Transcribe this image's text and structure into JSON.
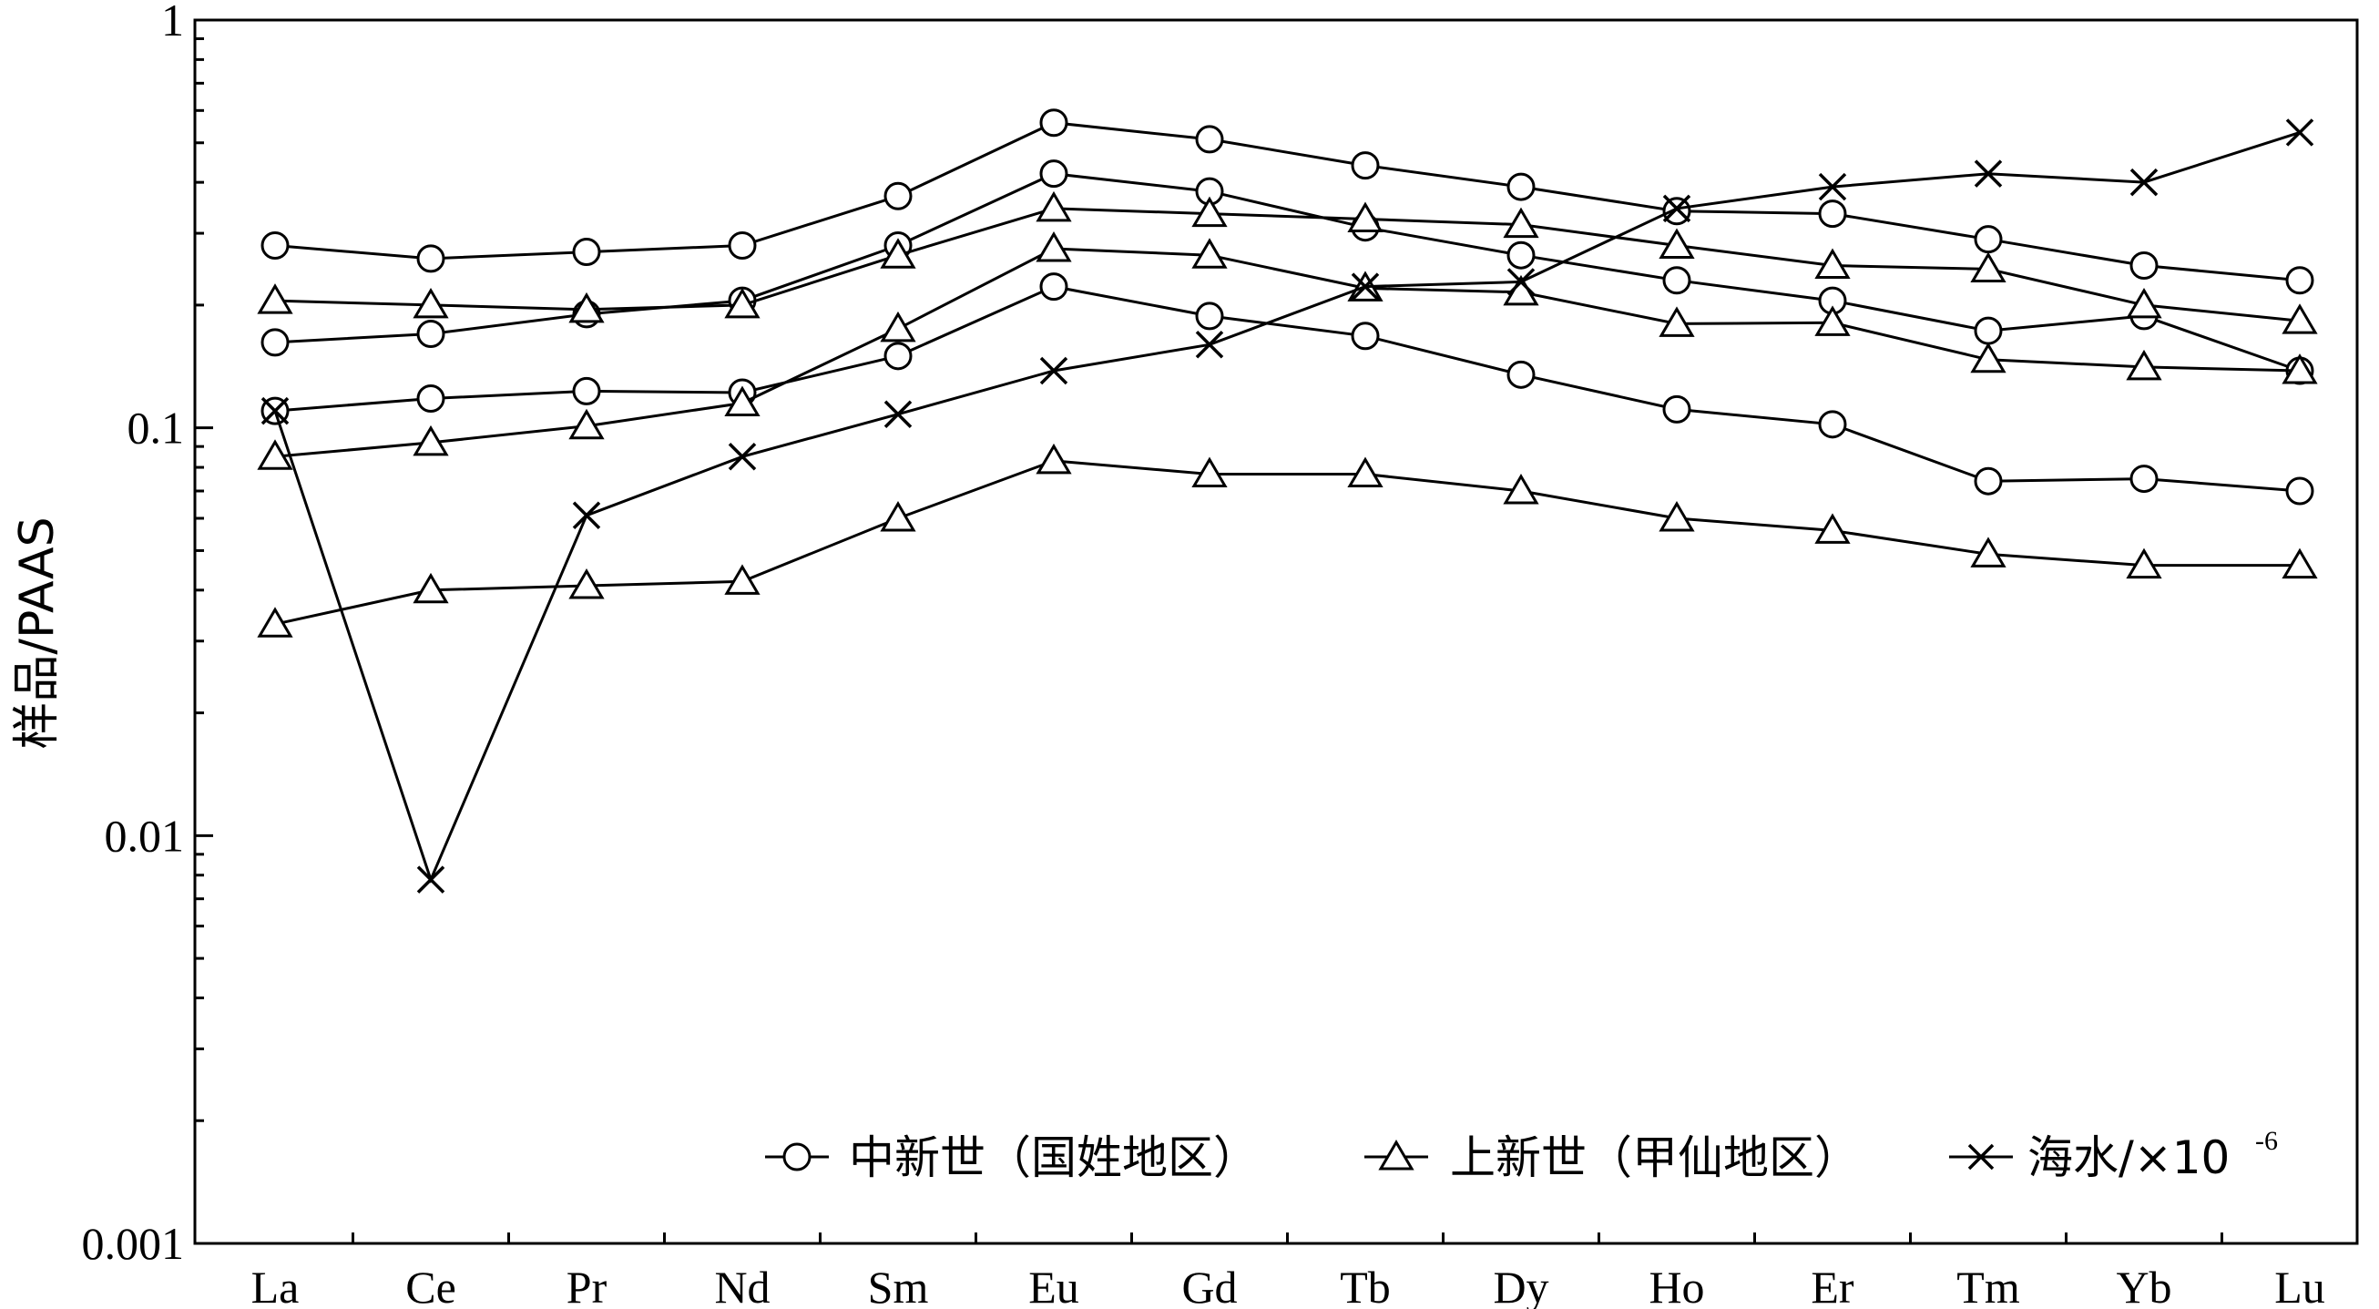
{
  "chart_data": {
    "type": "line",
    "ylabel": "样品/PAAS",
    "xlabel": "",
    "y_scale": "log",
    "ylim": [
      0.001,
      1
    ],
    "y_ticks": [
      "1",
      "0.1",
      "0.01",
      "0.001"
    ],
    "categories": [
      "La",
      "Ce",
      "Pr",
      "Nd",
      "Sm",
      "Eu",
      "Gd",
      "Tb",
      "Dy",
      "Ho",
      "Er",
      "Tm",
      "Yb",
      "Lu"
    ],
    "grid": false,
    "legend_position": "bottom-right",
    "legend": [
      {
        "marker": "circle",
        "label": "中新世（国姓地区）"
      },
      {
        "marker": "triangle",
        "label": "上新世（甲仙地区）"
      },
      {
        "marker": "cross",
        "label": "海水/×10",
        "superscript": "-6"
      }
    ],
    "series": [
      {
        "group": "中新世（国姓地区）",
        "marker": "circle",
        "values": [
          0.28,
          0.26,
          0.27,
          0.28,
          0.37,
          0.56,
          0.51,
          0.44,
          0.39,
          0.34,
          0.335,
          0.29,
          0.25,
          0.23
        ]
      },
      {
        "group": "中新世（国姓地区）",
        "marker": "circle",
        "values": [
          0.162,
          0.17,
          0.19,
          0.205,
          0.28,
          0.42,
          0.38,
          0.31,
          0.265,
          0.23,
          0.205,
          0.173,
          0.188,
          0.138
        ]
      },
      {
        "group": "中新世（国姓地区）",
        "marker": "circle",
        "values": [
          0.11,
          0.118,
          0.123,
          0.122,
          0.15,
          0.222,
          0.188,
          0.168,
          0.135,
          0.111,
          0.102,
          0.074,
          0.075,
          0.07
        ]
      },
      {
        "group": "上新世（甲仙地区）",
        "marker": "triangle",
        "values": [
          0.205,
          0.2,
          0.195,
          0.2,
          0.265,
          0.345,
          0.335,
          0.325,
          0.315,
          0.28,
          0.25,
          0.245,
          0.2,
          0.183
        ]
      },
      {
        "group": "上新世（甲仙地区）",
        "marker": "triangle",
        "values": [
          0.085,
          0.092,
          0.101,
          0.115,
          0.175,
          0.275,
          0.265,
          0.22,
          0.215,
          0.18,
          0.181,
          0.147,
          0.141,
          0.138
        ]
      },
      {
        "group": "上新世（甲仙地区）",
        "marker": "triangle",
        "values": [
          0.033,
          0.04,
          0.041,
          0.042,
          0.06,
          0.083,
          0.077,
          0.077,
          0.07,
          0.06,
          0.056,
          0.049,
          0.046,
          0.046
        ]
      },
      {
        "group": "海水/×10-6",
        "marker": "cross",
        "values": [
          0.11,
          0.0078,
          0.061,
          0.085,
          0.108,
          0.138,
          0.16,
          0.222,
          0.228,
          0.345,
          0.39,
          0.42,
          0.4,
          0.53
        ]
      }
    ]
  }
}
